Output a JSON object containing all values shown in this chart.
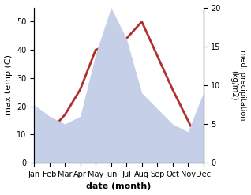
{
  "months": [
    "Jan",
    "Feb",
    "Mar",
    "Apr",
    "May",
    "Jun",
    "Jul",
    "Aug",
    "Sep",
    "Oct",
    "Nov",
    "Dec"
  ],
  "temp": [
    8,
    11,
    17,
    26,
    40,
    42,
    44,
    50,
    38,
    26,
    15,
    4
  ],
  "precip": [
    7.5,
    6,
    5,
    6,
    14,
    20,
    16,
    9,
    7,
    5,
    4,
    9
  ],
  "temp_color": "#b03030",
  "precip_fill_color": "#c5d0e8",
  "temp_ylim": [
    0,
    55
  ],
  "precip_ylim": [
    0,
    20
  ],
  "temp_yticks": [
    0,
    10,
    20,
    30,
    40,
    50
  ],
  "precip_yticks": [
    0,
    5,
    10,
    15,
    20
  ],
  "ylabel_left": "max temp (C)",
  "ylabel_right": "med. precipitation\n(kg/m2)",
  "xlabel": "date (month)",
  "bg_color": "#ffffff"
}
